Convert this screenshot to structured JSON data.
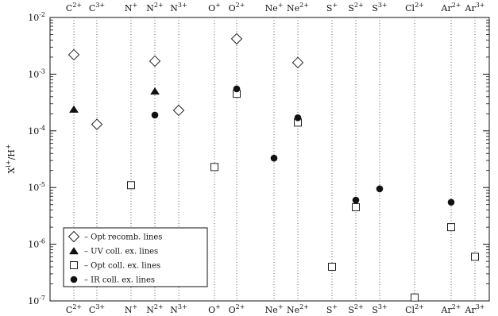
{
  "chart_data": {
    "type": "scatter",
    "ylabel": "X^{i+}/H^{+}",
    "y_scale": "log",
    "ylim": [
      1e-07,
      0.01
    ],
    "y_ticks": [
      {
        "value": 1e-07,
        "base": "10",
        "exp": "-7"
      },
      {
        "value": 1e-06,
        "base": "10",
        "exp": "-6"
      },
      {
        "value": 1e-05,
        "base": "10",
        "exp": "-5"
      },
      {
        "value": 0.0001,
        "base": "10",
        "exp": "-4"
      },
      {
        "value": 0.001,
        "base": "10",
        "exp": "-3"
      },
      {
        "value": 0.01,
        "base": "10",
        "exp": "-2"
      }
    ],
    "ions": [
      {
        "id": "C2",
        "el": "C",
        "ch": "2+"
      },
      {
        "id": "C3",
        "el": "C",
        "ch": "3+"
      },
      {
        "id": "N1",
        "el": "N",
        "ch": "+"
      },
      {
        "id": "N2",
        "el": "N",
        "ch": "2+"
      },
      {
        "id": "N3",
        "el": "N",
        "ch": "3+"
      },
      {
        "id": "O1",
        "el": "O",
        "ch": "+"
      },
      {
        "id": "O2",
        "el": "O",
        "ch": "2+"
      },
      {
        "id": "Ne1",
        "el": "Ne",
        "ch": "+"
      },
      {
        "id": "Ne2",
        "el": "Ne",
        "ch": "2+"
      },
      {
        "id": "S1",
        "el": "S",
        "ch": "+"
      },
      {
        "id": "S2",
        "el": "S",
        "ch": "2+"
      },
      {
        "id": "S3",
        "el": "S",
        "ch": "3+"
      },
      {
        "id": "Cl2",
        "el": "Cl",
        "ch": "2+"
      },
      {
        "id": "Ar2",
        "el": "Ar",
        "ch": "2+"
      },
      {
        "id": "Ar3",
        "el": "Ar",
        "ch": "3+"
      }
    ],
    "series": [
      {
        "name": "Opt recomb. lines",
        "marker": "open-diamond",
        "points": [
          {
            "ion": "C2",
            "y": 0.0022
          },
          {
            "ion": "C3",
            "y": 0.00013
          },
          {
            "ion": "N2",
            "y": 0.0017
          },
          {
            "ion": "N3",
            "y": 0.00023
          },
          {
            "ion": "O2",
            "y": 0.0042
          },
          {
            "ion": "Ne2",
            "y": 0.0016
          }
        ]
      },
      {
        "name": "UV coll. ex. lines",
        "marker": "filled-triangle",
        "points": [
          {
            "ion": "C2",
            "y": 0.00024
          },
          {
            "ion": "N2",
            "y": 0.0005
          }
        ]
      },
      {
        "name": "Opt coll. ex. lines",
        "marker": "open-square",
        "points": [
          {
            "ion": "N1",
            "y": 1.1e-05
          },
          {
            "ion": "O1",
            "y": 2.3e-05
          },
          {
            "ion": "O2",
            "y": 0.00045
          },
          {
            "ion": "Ne2",
            "y": 0.00014
          },
          {
            "ion": "S1",
            "y": 4e-07
          },
          {
            "ion": "S2",
            "y": 4.5e-06
          },
          {
            "ion": "Cl2",
            "y": 1.15e-07
          },
          {
            "ion": "Ar2",
            "y": 2e-06
          },
          {
            "ion": "Ar3",
            "y": 6e-07
          }
        ]
      },
      {
        "name": "IR coll. ex. lines",
        "marker": "filled-circle",
        "points": [
          {
            "ion": "N2",
            "y": 0.00019
          },
          {
            "ion": "O2",
            "y": 0.00055
          },
          {
            "ion": "Ne1",
            "y": 3.3e-05
          },
          {
            "ion": "Ne2",
            "y": 0.00017
          },
          {
            "ion": "S2",
            "y": 6e-06
          },
          {
            "ion": "S3",
            "y": 9.5e-06
          },
          {
            "ion": "Ar2",
            "y": 5.5e-06
          }
        ]
      }
    ],
    "legend": {
      "position": "bottom-left",
      "dash": "–",
      "entries": [
        {
          "marker": "open-diamond",
          "label": "Opt recomb. lines"
        },
        {
          "marker": "filled-triangle",
          "label": "UV coll. ex. lines"
        },
        {
          "marker": "open-square",
          "label": "Opt coll. ex. lines"
        },
        {
          "marker": "filled-circle",
          "label": "IR coll. ex. lines"
        }
      ]
    },
    "grid": "vertical dotted lines at each ion"
  }
}
